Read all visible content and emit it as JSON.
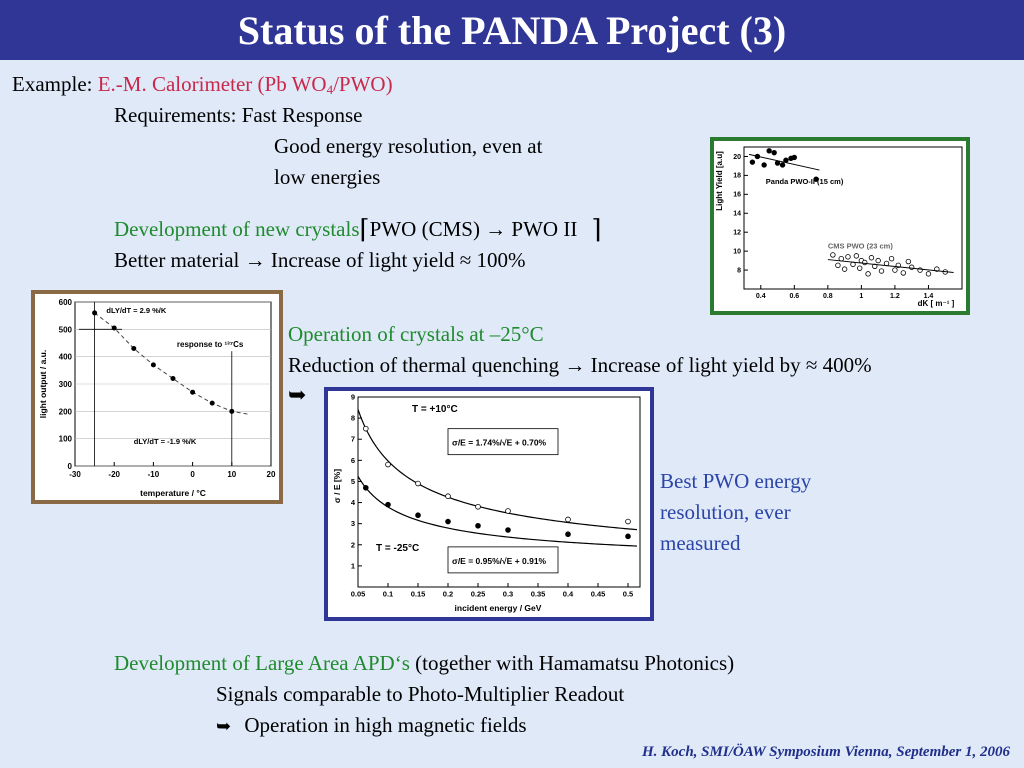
{
  "title": "Status of the PANDA Project (3)",
  "example_label": "Example:",
  "calorimeter": "E.-M. Calorimeter (Pb WO",
  "calorimeter_sub": "4",
  "calorimeter_end": "/PWO)",
  "requirements": "Requirements: Fast Response",
  "energy_res_1": "Good energy resolution, even at",
  "energy_res_2": "low energies",
  "dev_crystals": "Development of new crystals",
  "dev_crystals_rest": "PWO (CMS) → PWO II",
  "better_material": "Better material → Increase of light yield ≈ 100%",
  "operation_crystals": "Operation of crystals at –25°C",
  "reduction": "Reduction of thermal quenching → Increase of light yield by ≈ 400%",
  "arrow_glyph": "➥",
  "best_pwo": [
    "Best PWO energy",
    "resolution, ever",
    "measured"
  ],
  "dev_apd": "Development of Large Area APD‘s",
  "dev_apd_rest": "(together with Hamamatsu Photonics)",
  "signals": "Signals comparable to Photo-Multiplier Readout",
  "magnetic": "Operation in high magnetic fields",
  "footer": "H. Koch, SMI/ÖAW Symposium Vienna, September 1, 2006",
  "colors": {
    "title_bar": "#2f3695",
    "background": "#dfe9f8",
    "red": "#c8284a",
    "green": "#1f8a2e",
    "blue": "#2b44a8"
  },
  "chart_data": [
    {
      "type": "scatter",
      "title": "",
      "xlabel": "dK [ m⁻¹ ]",
      "ylabel": "Light Yield [a.u]",
      "xlim": [
        0.3,
        1.6
      ],
      "ylim": [
        6,
        21
      ],
      "xticks": [
        "0.4",
        "0.6",
        "0.8",
        "1",
        "1.2",
        "1.4"
      ],
      "yticks": [
        "8",
        "10",
        "12",
        "14",
        "16",
        "18",
        "20"
      ],
      "annotations": [
        "Panda PWO-II (15 cm)",
        "CMS PWO (23 cm)"
      ],
      "series": [
        {
          "name": "Panda PWO-II (15 cm)",
          "marker": "filled",
          "x": [
            0.35,
            0.38,
            0.42,
            0.45,
            0.48,
            0.5,
            0.53,
            0.55,
            0.58,
            0.6,
            0.73
          ],
          "y": [
            19.4,
            20.0,
            19.1,
            20.6,
            20.4,
            19.3,
            19.1,
            19.6,
            19.8,
            19.9,
            17.6
          ]
        },
        {
          "name": "CMS PWO (23 cm)",
          "marker": "open",
          "x": [
            0.83,
            0.86,
            0.88,
            0.9,
            0.92,
            0.95,
            0.97,
            0.99,
            1.0,
            1.02,
            1.04,
            1.06,
            1.08,
            1.1,
            1.12,
            1.15,
            1.18,
            1.2,
            1.22,
            1.25,
            1.28,
            1.3,
            1.35,
            1.4,
            1.45,
            1.5
          ],
          "y": [
            9.6,
            8.5,
            9.2,
            8.1,
            9.4,
            8.6,
            9.5,
            8.2,
            9.0,
            8.8,
            7.6,
            9.3,
            8.4,
            9.0,
            7.9,
            8.7,
            9.2,
            8.0,
            8.5,
            7.7,
            8.9,
            8.3,
            8.0,
            7.6,
            8.1,
            7.8
          ]
        }
      ]
    },
    {
      "type": "line",
      "title": "",
      "xlabel": "temperature / °C",
      "ylabel": "light output / a.u.",
      "xlim": [
        -30,
        20
      ],
      "ylim": [
        0,
        600
      ],
      "xticks": [
        "-30",
        "-20",
        "-10",
        "0",
        "10",
        "20"
      ],
      "yticks": [
        "0",
        "100",
        "200",
        "300",
        "400",
        "500",
        "600"
      ],
      "annotations": [
        "response to ¹³⁷Cs",
        "dLY/dT = 2.9 %/K",
        "dLY/dT = -1.9 %/K"
      ],
      "series": [
        {
          "name": "",
          "x": [
            -25,
            -20,
            -15,
            -10,
            -5,
            0,
            5,
            10
          ],
          "y": [
            560,
            505,
            430,
            370,
            320,
            270,
            230,
            200
          ]
        }
      ]
    },
    {
      "type": "line",
      "title": "",
      "xlabel": "incident energy / GeV",
      "ylabel": "σ / E   [%]",
      "xlim": [
        0.05,
        0.52
      ],
      "ylim": [
        0,
        9
      ],
      "xticks": [
        "0.05",
        "0.1",
        "0.15",
        "0.2",
        "0.25",
        "0.3",
        "0.35",
        "0.4",
        "0.45",
        "0.5"
      ],
      "yticks": [
        "1",
        "2",
        "3",
        "4",
        "5",
        "6",
        "7",
        "8",
        "9"
      ],
      "annotations": [
        "T = +10°C",
        "T = -25°C",
        "σ/E = 1.74%/√E + 0.70%",
        "σ/E = 0.95%/√E + 0.91%"
      ],
      "series": [
        {
          "name": "T = +10°C",
          "marker": "open",
          "x": [
            0.063,
            0.1,
            0.15,
            0.2,
            0.25,
            0.3,
            0.4,
            0.5
          ],
          "y": [
            7.5,
            5.8,
            4.9,
            4.3,
            3.8,
            3.6,
            3.2,
            3.1
          ]
        },
        {
          "name": "T = -25°C",
          "marker": "filled",
          "x": [
            0.063,
            0.1,
            0.15,
            0.2,
            0.25,
            0.3,
            0.4,
            0.5
          ],
          "y": [
            4.7,
            3.9,
            3.4,
            3.1,
            2.9,
            2.7,
            2.5,
            2.4
          ]
        }
      ]
    }
  ]
}
